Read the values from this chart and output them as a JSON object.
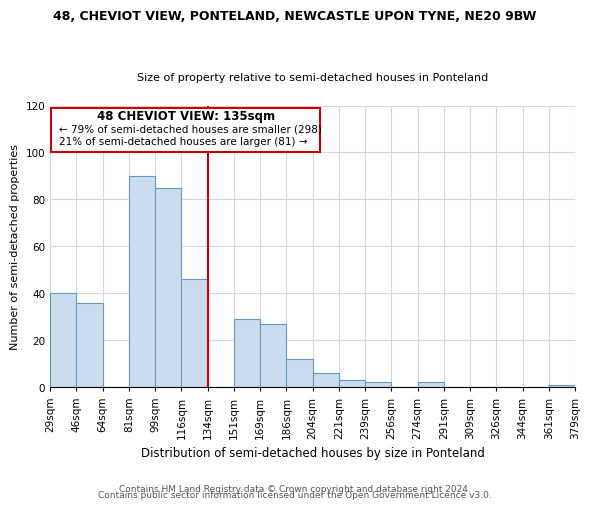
{
  "title": "48, CHEVIOT VIEW, PONTELAND, NEWCASTLE UPON TYNE, NE20 9BW",
  "subtitle": "Size of property relative to semi-detached houses in Ponteland",
  "xlabel": "Distribution of semi-detached houses by size in Ponteland",
  "ylabel": "Number of semi-detached properties",
  "footer_line1": "Contains HM Land Registry data © Crown copyright and database right 2024.",
  "footer_line2": "Contains public sector information licensed under the Open Government Licence v3.0.",
  "bin_labels": [
    "29sqm",
    "46sqm",
    "64sqm",
    "81sqm",
    "99sqm",
    "116sqm",
    "134sqm",
    "151sqm",
    "169sqm",
    "186sqm",
    "204sqm",
    "221sqm",
    "239sqm",
    "256sqm",
    "274sqm",
    "291sqm",
    "309sqm",
    "326sqm",
    "344sqm",
    "361sqm",
    "379sqm"
  ],
  "bar_values": [
    40,
    36,
    0,
    90,
    85,
    46,
    0,
    29,
    27,
    12,
    6,
    3,
    2,
    0,
    2,
    0,
    0,
    0,
    0,
    1
  ],
  "bar_color": "#ccdcef",
  "bar_edge_color": "#6699bb",
  "vline_color": "#cc0000",
  "vline_x_index": 6,
  "annotation_title": "48 CHEVIOT VIEW: 135sqm",
  "annotation_line1": "← 79% of semi-detached houses are smaller (298)",
  "annotation_line2": "21% of semi-detached houses are larger (81) →",
  "box_color": "#cc0000",
  "ylim": [
    0,
    120
  ],
  "yticks": [
    0,
    20,
    40,
    60,
    80,
    100,
    120
  ],
  "grid_color": "#d0d8e8",
  "title_fontsize": 9,
  "subtitle_fontsize": 8,
  "ylabel_fontsize": 8,
  "xlabel_fontsize": 8.5,
  "tick_fontsize": 7.5,
  "footer_fontsize": 6.5
}
